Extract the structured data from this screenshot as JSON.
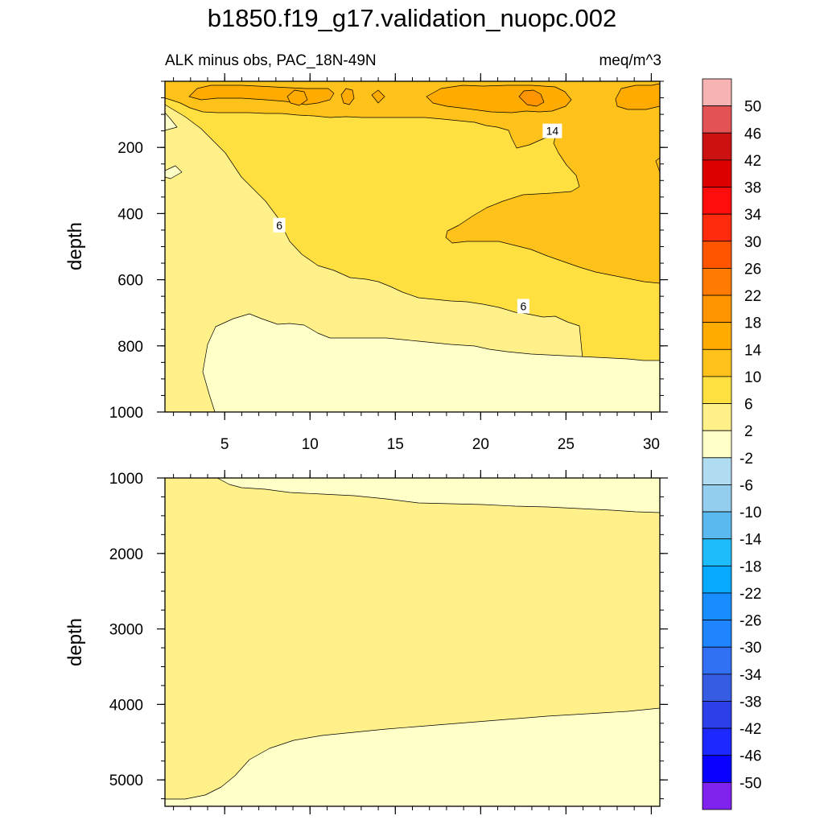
{
  "chart_data": {
    "type": "contour",
    "title": "b1850.f19_g17.validation_nuopc.002",
    "subtitle_left": "ALK minus obs, PAC_18N-49N",
    "subtitle_right": "meq/m^3",
    "panels": [
      {
        "name": "upper",
        "ylabel": "depth",
        "xlim": [
          1.5,
          30.5
        ],
        "ylim": [
          0,
          1000
        ],
        "y_inverted": true,
        "xticks": [
          5,
          10,
          15,
          20,
          25,
          30
        ],
        "xtick_labels": [
          "5",
          "10",
          "15",
          "20",
          "25",
          "30"
        ],
        "yticks": [
          200,
          400,
          600,
          800,
          1000
        ],
        "ytick_labels": [
          "200",
          "400",
          "600",
          "800",
          "1000"
        ],
        "contour_labels": [
          {
            "text": "14",
            "x": 24.2,
            "y": 150
          },
          {
            "text": "6",
            "x": 8.2,
            "y": 435
          },
          {
            "text": "6",
            "x": 22.5,
            "y": 680
          }
        ]
      },
      {
        "name": "lower",
        "ylabel": "depth",
        "xlim": [
          1.5,
          30.5
        ],
        "ylim": [
          1000,
          5350
        ],
        "y_inverted": true,
        "xticks": [
          5,
          10,
          15,
          20,
          25,
          30
        ],
        "xtick_labels": [],
        "yticks": [
          1000,
          2000,
          3000,
          4000,
          5000
        ],
        "ytick_labels": [
          "1000",
          "2000",
          "3000",
          "4000",
          "5000"
        ],
        "contour_labels": []
      }
    ],
    "colorbar": {
      "levels": [
        "50",
        "46",
        "42",
        "38",
        "34",
        "30",
        "26",
        "22",
        "18",
        "14",
        "10",
        "6",
        "2",
        "-2",
        "-6",
        "-10",
        "-14",
        "-18",
        "-22",
        "-26",
        "-30",
        "-34",
        "-38",
        "-42",
        "-46",
        "-50"
      ],
      "colors": [
        "#f7b3b3",
        "#e35353",
        "#cc1111",
        "#dd0000",
        "#ff0c0c",
        "#ff2b0c",
        "#ff5500",
        "#ff7a00",
        "#ff9500",
        "#ffab00",
        "#ffc21a",
        "#ffe040",
        "#fff08a",
        "#ffffc8",
        "#b0dcf2",
        "#94cdee",
        "#5ab9ef",
        "#1ebcfa",
        "#07aaff",
        "#188dff",
        "#1f84ff",
        "#316ff3",
        "#375ce4",
        "#2d3fe8",
        "#1c28ff",
        "#0a00ff",
        "#7f22ee"
      ]
    }
  }
}
